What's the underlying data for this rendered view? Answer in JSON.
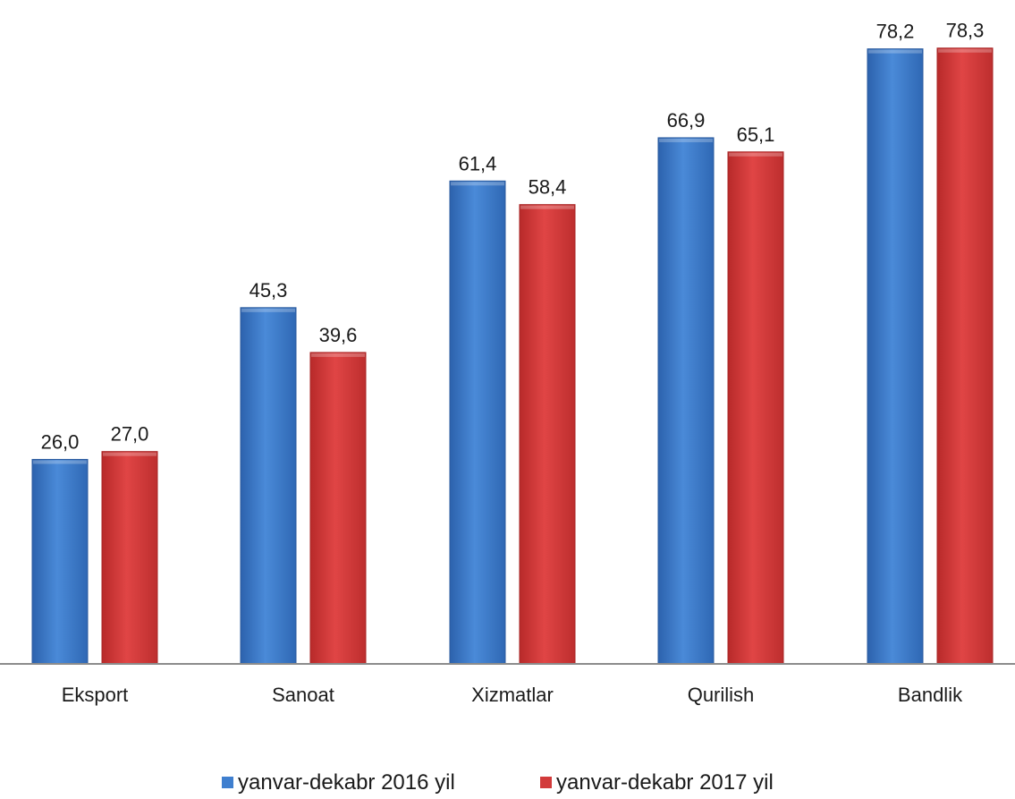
{
  "chart_data": {
    "type": "bar",
    "title": "",
    "xlabel": "",
    "ylabel": "",
    "ylim": [
      0,
      82
    ],
    "grid": false,
    "legend_position": "bottom-center",
    "categories": [
      "Eksport",
      "Sanoat",
      "Xizmatlar",
      "Qurilish",
      "Bandlik"
    ],
    "series": [
      {
        "name": "yanvar-dekabr 2016 yil",
        "color": "#3f7fcf",
        "values": [
          26.0,
          45.3,
          61.4,
          66.9,
          78.2
        ],
        "labels": [
          "26,0",
          "45,3",
          "61,4",
          "66,9",
          "78,2"
        ]
      },
      {
        "name": "yanvar-dekabr 2017 yil",
        "color": "#d23a3a",
        "values": [
          27.0,
          39.6,
          58.4,
          65.1,
          78.3
        ],
        "labels": [
          "27,0",
          "39,6",
          "58,4",
          "65,1",
          "78,3"
        ]
      }
    ]
  }
}
